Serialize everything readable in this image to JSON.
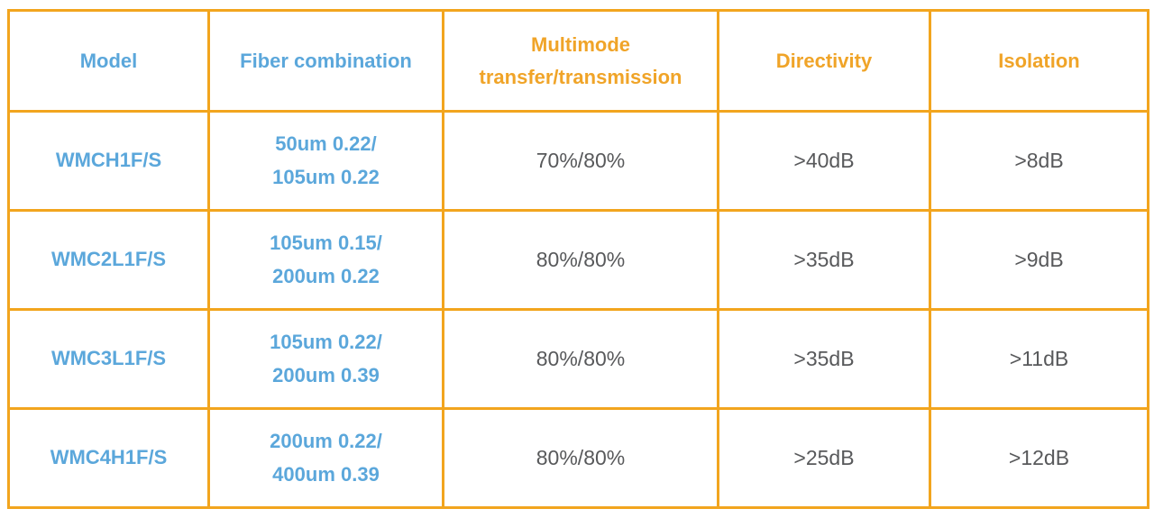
{
  "colors": {
    "border_orange": "#F2A51E",
    "header_orange_text": "#F0A428",
    "header_blue_text": "#5BA7DB",
    "body_gray_text": "#58595B",
    "background": "#FFFFFF"
  },
  "table": {
    "columns": [
      {
        "label": "Model"
      },
      {
        "label": "Fiber combination"
      },
      {
        "label": "Multimode transfer/transmission"
      },
      {
        "label": "Directivity"
      },
      {
        "label": "Isolation"
      }
    ],
    "rows": [
      {
        "model": "WMCH1F/S",
        "fiber": [
          "50um 0.22/",
          "105um 0.22"
        ],
        "multimode": "70%/80%",
        "directivity": ">40dB",
        "isolation": ">8dB"
      },
      {
        "model": "WMC2L1F/S",
        "fiber": [
          "105um 0.15/",
          "200um 0.22"
        ],
        "multimode": "80%/80%",
        "directivity": ">35dB",
        "isolation": ">9dB"
      },
      {
        "model": "WMC3L1F/S",
        "fiber": [
          "105um 0.22/",
          "200um 0.39"
        ],
        "multimode": "80%/80%",
        "directivity": ">35dB",
        "isolation": ">11dB"
      },
      {
        "model": "WMC4H1F/S",
        "fiber": [
          "200um 0.22/",
          "400um 0.39"
        ],
        "multimode": "80%/80%",
        "directivity": ">25dB",
        "isolation": ">12dB"
      }
    ]
  }
}
